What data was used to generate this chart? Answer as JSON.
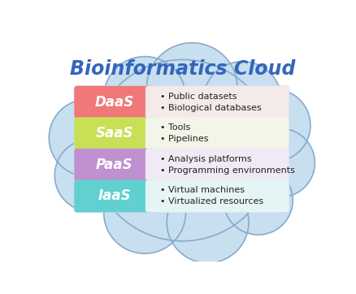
{
  "title": "Bioinformatics Cloud",
  "title_color": "#3366bb",
  "title_fontsize": 17,
  "rows": [
    {
      "label": "DaaS",
      "label_color": "#ffffff",
      "box_color": "#f07878",
      "right_bg": "#f5eaea",
      "bullets": [
        "Public datasets",
        "Biological databases"
      ]
    },
    {
      "label": "SaaS",
      "label_color": "#ffffff",
      "box_color": "#c8e055",
      "right_bg": "#f2f5e8",
      "bullets": [
        "Tools",
        "Pipelines"
      ]
    },
    {
      "label": "PaaS",
      "label_color": "#ffffff",
      "box_color": "#c090d0",
      "right_bg": "#f0eaf5",
      "bullets": [
        "Analysis platforms",
        "Programming environments"
      ]
    },
    {
      "label": "IaaS",
      "label_color": "#ffffff",
      "box_color": "#60d0d0",
      "right_bg": "#e5f5f5",
      "bullets": [
        "Virtual machines",
        "Virtualized resources"
      ]
    }
  ],
  "cloud_fill": "#aaccee",
  "cloud_edge": "#88aacc",
  "cloud_inner": "#c8dff0",
  "white_bg": "#ffffff"
}
